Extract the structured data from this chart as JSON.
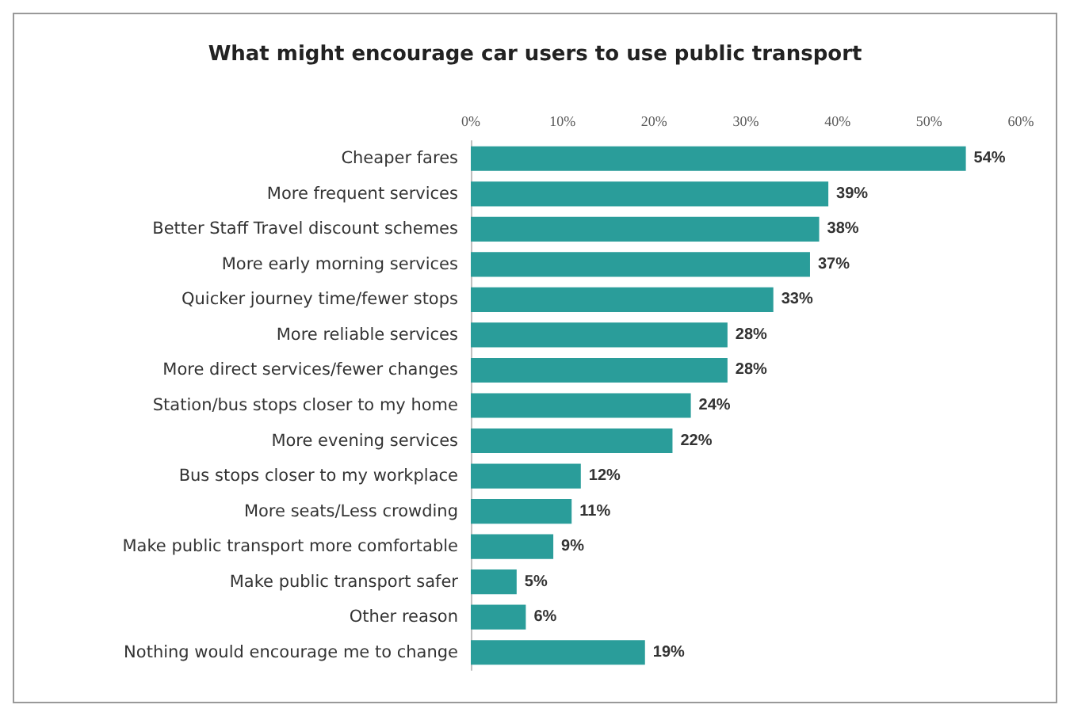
{
  "chart_data": {
    "type": "bar",
    "orientation": "horizontal",
    "title": "What might encourage car users to use public transport",
    "categories": [
      "Cheaper fares",
      "More frequent services",
      "Better Staff Travel discount schemes",
      "More early morning services",
      "Quicker journey time/fewer stops",
      "More reliable services",
      "More direct services/fewer changes",
      "Station/bus stops closer to my home",
      "More evening services",
      "Bus stops closer to my workplace",
      "More seats/Less crowding",
      "Make public transport more comfortable",
      "Make public transport safer",
      "Other reason",
      "Nothing would encourage me to change"
    ],
    "values": [
      54,
      39,
      38,
      37,
      33,
      28,
      28,
      24,
      22,
      12,
      11,
      9,
      5,
      6,
      19
    ],
    "value_labels": [
      "54%",
      "39%",
      "38%",
      "37%",
      "33%",
      "28%",
      "28%",
      "24%",
      "22%",
      "12%",
      "11%",
      "9%",
      "5%",
      "6%",
      "19%"
    ],
    "color": "#2a9d9a",
    "xlim": [
      0,
      60
    ],
    "xticks": [
      {
        "value": 0,
        "label": "0%"
      },
      {
        "value": 10,
        "label": "10%"
      },
      {
        "value": 20,
        "label": "20%"
      },
      {
        "value": 30,
        "label": "30%"
      },
      {
        "value": 40,
        "label": "40%"
      },
      {
        "value": 50,
        "label": "50%"
      },
      {
        "value": 60,
        "label": "60%"
      }
    ]
  }
}
